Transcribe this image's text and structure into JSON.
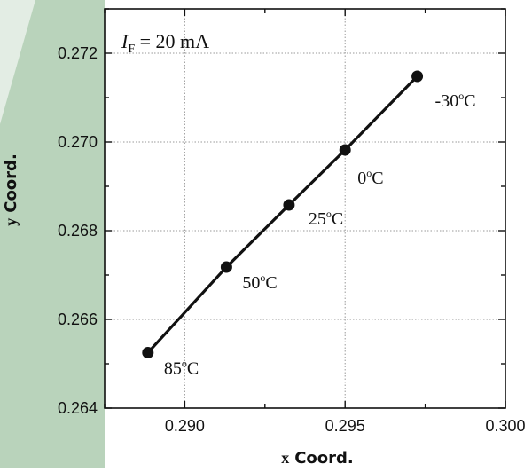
{
  "chart_data": {
    "type": "line",
    "title": "",
    "xlabel_prefix": "x",
    "xlabel_main": "Coord.",
    "ylabel_prefix": "y",
    "ylabel_main": "Coord.",
    "xlim": [
      0.2875,
      0.3
    ],
    "ylim": [
      0.264,
      0.273
    ],
    "x_ticks": [
      0.29,
      0.295,
      0.3
    ],
    "x_tick_labels": [
      "0.290",
      "0.295",
      "0.300"
    ],
    "y_ticks": [
      0.264,
      0.266,
      0.268,
      0.27,
      0.272
    ],
    "y_tick_labels": [
      "0.264",
      "0.266",
      "0.268",
      "0.270",
      "0.272"
    ],
    "grid": true,
    "annotation_if": {
      "I": "I",
      "F": "F",
      "rest": " = 20 mA"
    },
    "series": [
      {
        "x": [
          0.28885,
          0.2913,
          0.29325,
          0.295,
          0.29725
        ],
        "y": [
          0.26525,
          0.26718,
          0.26858,
          0.26982,
          0.27148
        ],
        "labels": [
          "85",
          "50",
          "25",
          "0",
          "-30"
        ],
        "label_unit_sup": "o",
        "label_unit": "C"
      }
    ]
  },
  "colors": {
    "line": "#111111",
    "grid": "#9a9a9a",
    "band": "#b9d3bb"
  }
}
